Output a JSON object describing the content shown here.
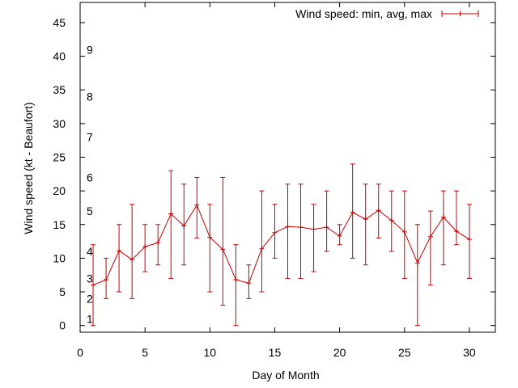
{
  "chart_data": {
    "type": "line",
    "xlabel": "Day of Month",
    "ylabel": "Wind speed (kt - Beaufort)",
    "xlim": [
      0,
      32
    ],
    "ylim": [
      -1,
      48
    ],
    "xticks": [
      0,
      5,
      10,
      15,
      20,
      25,
      30
    ],
    "yticks": [
      0,
      5,
      10,
      15,
      20,
      25,
      30,
      35,
      40,
      45
    ],
    "grid": false,
    "legend": "top-right",
    "series_color": "#cc0000",
    "beaufort_labels": [
      {
        "label": "1",
        "y": 1
      },
      {
        "label": "2",
        "y": 4
      },
      {
        "label": "3",
        "y": 7
      },
      {
        "label": "4",
        "y": 11
      },
      {
        "label": "5",
        "y": 17
      },
      {
        "label": "6",
        "y": 22
      },
      {
        "label": "7",
        "y": 28
      },
      {
        "label": "8",
        "y": 34
      },
      {
        "label": "9",
        "y": 41
      }
    ],
    "series": [
      {
        "name": "Wind speed: min, avg, max",
        "x": [
          1,
          2,
          3,
          4,
          5,
          6,
          7,
          8,
          9,
          10,
          11,
          12,
          13,
          14,
          15,
          16,
          17,
          18,
          19,
          20,
          21,
          22,
          23,
          24,
          25,
          26,
          27,
          28,
          29,
          30
        ],
        "avg": [
          6.0,
          6.8,
          11.1,
          9.8,
          11.7,
          12.3,
          16.6,
          14.8,
          17.9,
          13.1,
          11.3,
          6.8,
          6.3,
          11.4,
          13.8,
          14.7,
          14.6,
          14.3,
          14.6,
          13.3,
          16.8,
          15.8,
          17.1,
          15.6,
          13.9,
          9.3,
          13.2,
          16.1,
          14.0,
          12.8
        ],
        "min": [
          0,
          4,
          5,
          4,
          8,
          9,
          7,
          9,
          13,
          5,
          3,
          0,
          4,
          5,
          10,
          7,
          7,
          8,
          11,
          12,
          10,
          9,
          13,
          11,
          7,
          0,
          6,
          9,
          12,
          7
        ],
        "max": [
          12,
          10,
          15,
          18,
          15,
          15,
          23,
          21,
          22,
          18,
          22,
          12,
          9,
          20,
          18,
          21,
          21,
          18,
          20,
          15,
          24,
          21,
          21,
          20,
          20,
          15,
          17,
          20,
          20,
          18
        ]
      }
    ]
  }
}
